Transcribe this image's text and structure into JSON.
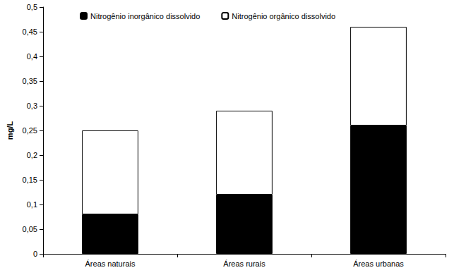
{
  "chart_data": {
    "type": "bar",
    "stacked": true,
    "categories": [
      "Áreas naturais",
      "Áreas rurais",
      "Áreas urbanas"
    ],
    "y_label": "mg/L",
    "series": [
      {
        "name": "Nitrogênio inorgânico dissolvido",
        "color": "#000000",
        "values": [
          0.08,
          0.12,
          0.26
        ]
      },
      {
        "name": "Nitrogênio orgânico dissolvido",
        "color": "#ffffff",
        "values": [
          0.17,
          0.17,
          0.2
        ]
      }
    ],
    "ylim": [
      0,
      0.5
    ],
    "yticks": [
      0,
      {
        "value": 0.05,
        "label": "0,05"
      },
      {
        "value": 0.1,
        "label": "0,1"
      },
      {
        "value": 0.15,
        "label": "0,15"
      },
      {
        "value": 0.2,
        "label": "0,2"
      },
      {
        "value": 0.25,
        "label": "0,25"
      },
      {
        "value": 0.3,
        "label": "0,3"
      },
      {
        "value": 0.35,
        "label": "0,35"
      },
      {
        "value": 0.4,
        "label": "0,4"
      },
      {
        "value": 0.45,
        "label": "0,45"
      },
      {
        "value": 0.5,
        "label": "0,5"
      }
    ],
    "grid": false,
    "legend": "upper left"
  }
}
